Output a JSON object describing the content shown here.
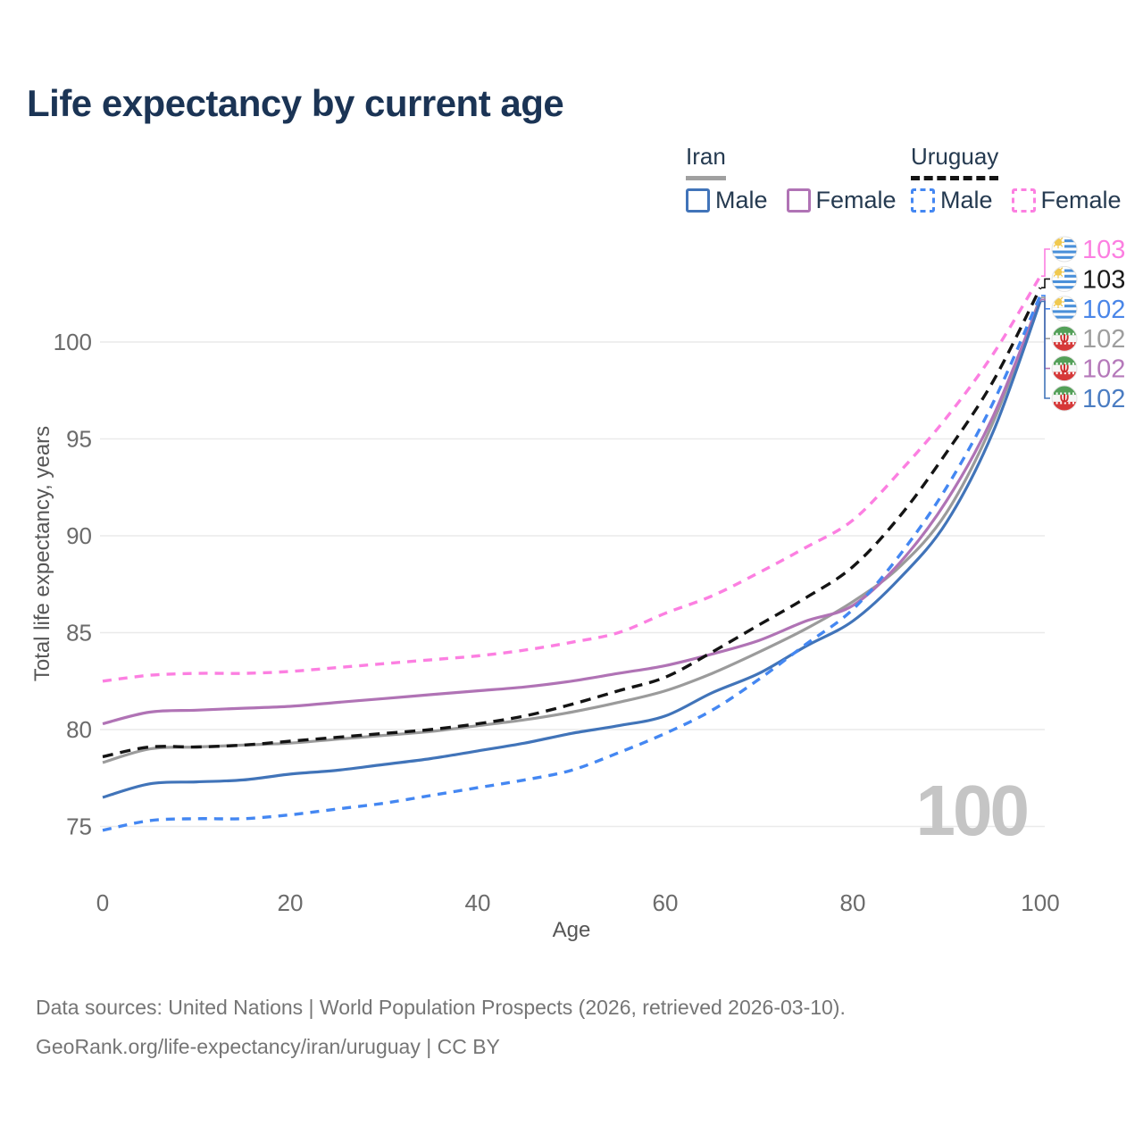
{
  "title": "Life expectancy by current age",
  "legend": {
    "groups": [
      {
        "label": "Iran",
        "line_style": "solid",
        "underline_color": "#a0a0a0",
        "items": [
          {
            "label": "Male",
            "color": "#4174b9",
            "dashed": false
          },
          {
            "label": "Female",
            "color": "#b073b5",
            "dashed": false
          }
        ]
      },
      {
        "label": "Uruguay",
        "line_style": "dashed",
        "underline_color": "#141414",
        "items": [
          {
            "label": "Male",
            "color": "#4487f2",
            "dashed": true
          },
          {
            "label": "Female",
            "color": "#fc7fe1",
            "dashed": true
          }
        ]
      }
    ]
  },
  "watermark": "100",
  "footer": {
    "line1": "Data sources: United Nations | World Population Prospects (2026, retrieved 2026-03-10).",
    "line2": "GeoRank.org/life-expectancy/iran/uruguay | CC BY"
  },
  "chart_data": {
    "type": "line",
    "title": "Life expectancy by current age",
    "xlabel": "Age",
    "ylabel": "Total life expectancy, years",
    "xlim": [
      0,
      100
    ],
    "ylim": [
      74,
      104
    ],
    "x_ticks": [
      0,
      20,
      40,
      60,
      80,
      100
    ],
    "y_ticks": [
      75,
      80,
      85,
      90,
      95,
      100
    ],
    "grid": "horizontal",
    "legend_position": "top-right",
    "colors": {
      "grid": "#eaeaea",
      "tick": "#6b6b6b",
      "axis_title": "#565656",
      "watermark": "#c5c5c5",
      "title": "#1b3455",
      "footer": "#757575",
      "legend_text": "#253a50"
    },
    "flags": {
      "uy": {
        "stripe_blue": "#4a90d9",
        "field": "#ffffff",
        "sun": "#f0c94f"
      },
      "ir": {
        "green": "#53a058",
        "white": "#f7f7f7",
        "red": "#d63838",
        "emblem": "#cf2e2e"
      }
    },
    "x": [
      0,
      5,
      10,
      15,
      20,
      25,
      30,
      35,
      40,
      45,
      50,
      55,
      60,
      65,
      70,
      75,
      80,
      85,
      90,
      95,
      100
    ],
    "series": [
      {
        "name": "Uruguay Female",
        "country": "Uruguay",
        "sex": "Female",
        "color": "#fc7fe1",
        "dashed": true,
        "flag": "uy",
        "end_label": "103",
        "label_color": "#fc7fe1",
        "values": [
          82.5,
          82.8,
          82.9,
          82.9,
          83.0,
          83.2,
          83.4,
          83.6,
          83.8,
          84.1,
          84.5,
          85.0,
          86.0,
          86.9,
          88.1,
          89.4,
          90.8,
          93.3,
          96.1,
          99.4,
          103.4
        ]
      },
      {
        "name": "Uruguay Both sexes",
        "country": "Uruguay",
        "sex": "Both",
        "color": "#141414",
        "dashed": true,
        "flag": "uy",
        "end_label": "103",
        "label_color": "#1a1a1a",
        "values": [
          78.6,
          79.1,
          79.1,
          79.2,
          79.4,
          79.6,
          79.8,
          80.0,
          80.3,
          80.7,
          81.3,
          82.0,
          82.7,
          84.0,
          85.4,
          86.8,
          88.4,
          91.0,
          94.3,
          98.0,
          102.8
        ]
      },
      {
        "name": "Uruguay Male",
        "country": "Uruguay",
        "sex": "Male",
        "color": "#4487f2",
        "dashed": true,
        "flag": "uy",
        "end_label": "102",
        "label_color": "#4a86e8",
        "values": [
          74.8,
          75.3,
          75.4,
          75.4,
          75.6,
          75.9,
          76.2,
          76.6,
          77.0,
          77.4,
          77.9,
          78.8,
          79.8,
          81.0,
          82.6,
          84.4,
          86.2,
          89.0,
          92.5,
          96.9,
          102.4
        ]
      },
      {
        "name": "Iran Both sexes",
        "country": "Iran",
        "sex": "Both",
        "color": "#9b9b9b",
        "dashed": false,
        "flag": "ir",
        "end_label": "102",
        "label_color": "#9e9e9e",
        "values": [
          78.3,
          79.0,
          79.1,
          79.2,
          79.3,
          79.5,
          79.7,
          79.9,
          80.2,
          80.5,
          80.9,
          81.4,
          82.0,
          82.9,
          84.0,
          85.2,
          86.6,
          88.4,
          91.2,
          95.9,
          102.3
        ]
      },
      {
        "name": "Iran Female",
        "country": "Iran",
        "sex": "Female",
        "color": "#b073b5",
        "dashed": false,
        "flag": "ir",
        "end_label": "102",
        "label_color": "#b579ba",
        "values": [
          80.3,
          80.9,
          81.0,
          81.1,
          81.2,
          81.4,
          81.6,
          81.8,
          82.0,
          82.2,
          82.5,
          82.9,
          83.3,
          83.9,
          84.6,
          85.6,
          86.4,
          88.6,
          91.8,
          96.2,
          102.2
        ]
      },
      {
        "name": "Iran Male",
        "country": "Iran",
        "sex": "Male",
        "color": "#4174b9",
        "dashed": false,
        "flag": "ir",
        "end_label": "102",
        "label_color": "#4a7cc2",
        "values": [
          76.5,
          77.2,
          77.3,
          77.4,
          77.7,
          77.9,
          78.2,
          78.5,
          78.9,
          79.3,
          79.8,
          80.2,
          80.7,
          81.9,
          82.9,
          84.3,
          85.6,
          87.8,
          90.7,
          95.4,
          102.1
        ]
      }
    ]
  }
}
